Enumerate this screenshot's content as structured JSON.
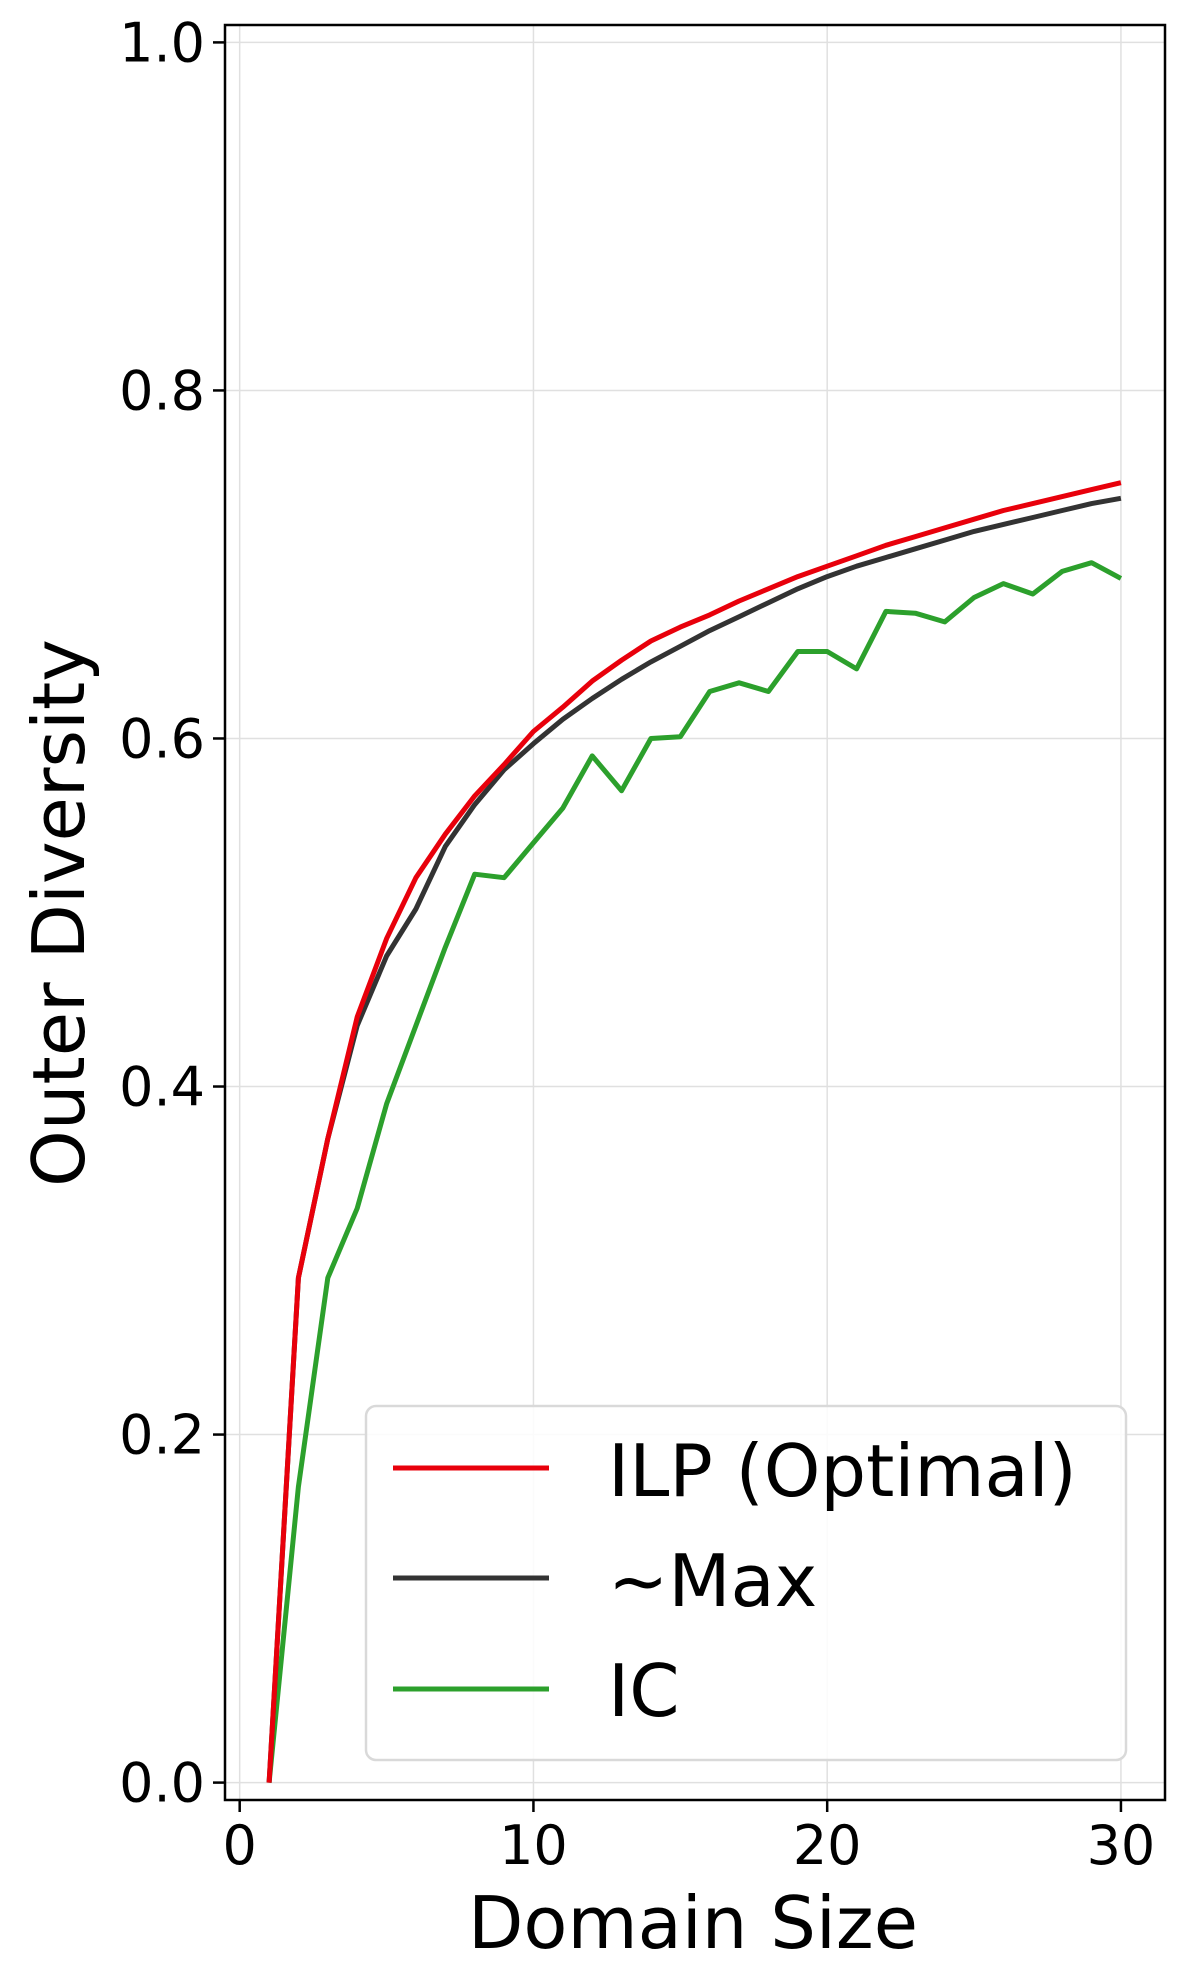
{
  "chart_data": {
    "type": "line",
    "title": "",
    "xlabel": "Domain Size",
    "ylabel": "Outer Diversity",
    "xlim": [
      -0.5,
      31.5
    ],
    "ylim": [
      -0.01,
      1.01
    ],
    "xticks": [
      0,
      10,
      20,
      30
    ],
    "xtick_labels": [
      "0",
      "10",
      "20",
      "30"
    ],
    "yticks": [
      0.0,
      0.2,
      0.4,
      0.6,
      0.8,
      1.0
    ],
    "ytick_labels": [
      "0.0",
      "0.2",
      "0.4",
      "0.6",
      "0.8",
      "1.0"
    ],
    "grid": true,
    "legend_position": "lower-right",
    "x": [
      1,
      2,
      3,
      4,
      5,
      6,
      7,
      8,
      9,
      10,
      11,
      12,
      13,
      14,
      15,
      16,
      17,
      18,
      19,
      20,
      21,
      22,
      23,
      24,
      25,
      26,
      27,
      28,
      29,
      30
    ],
    "series": [
      {
        "name": "ILP (Optimal)",
        "color": "#e8000b",
        "values": [
          0.0,
          0.29,
          0.37,
          0.44,
          0.485,
          0.52,
          0.545,
          0.567,
          0.585,
          0.604,
          0.618,
          0.633,
          0.645,
          0.656,
          0.664,
          0.671,
          0.679,
          0.686,
          0.693,
          0.699,
          0.705,
          0.711,
          0.716,
          0.721,
          0.726,
          0.731,
          0.735,
          0.739,
          0.743,
          0.747
        ]
      },
      {
        "name": "~Max",
        "color": "#333333",
        "values": [
          0.0,
          0.29,
          0.37,
          0.435,
          0.475,
          0.502,
          0.538,
          0.562,
          0.582,
          0.597,
          0.611,
          0.623,
          0.634,
          0.644,
          0.653,
          0.662,
          0.67,
          0.678,
          0.686,
          0.693,
          0.699,
          0.704,
          0.709,
          0.714,
          0.719,
          0.723,
          0.727,
          0.731,
          0.735,
          0.738
        ]
      },
      {
        "name": "IC",
        "color": "#2ca02c",
        "values": [
          0.0,
          0.17,
          0.29,
          0.33,
          0.39,
          0.435,
          0.48,
          0.522,
          0.52,
          0.54,
          0.56,
          0.59,
          0.57,
          0.6,
          0.601,
          0.627,
          0.632,
          0.627,
          0.65,
          0.65,
          0.64,
          0.673,
          0.672,
          0.667,
          0.681,
          0.689,
          0.683,
          0.696,
          0.701,
          0.692
        ]
      }
    ]
  }
}
